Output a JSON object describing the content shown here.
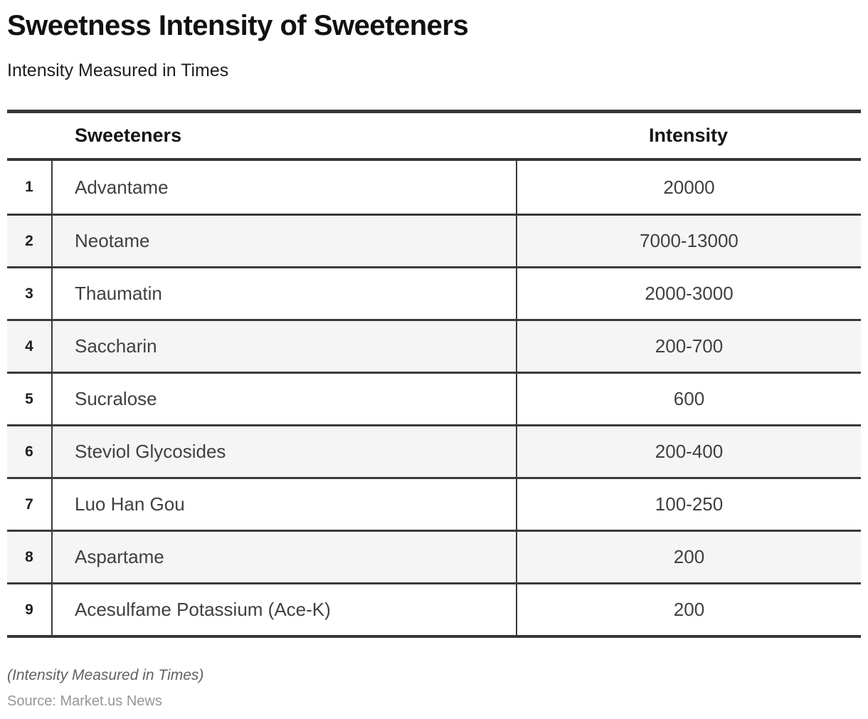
{
  "header": {
    "title": "Sweetness Intensity of Sweeteners",
    "subtitle": "Intensity Measured in Times"
  },
  "table": {
    "columns": {
      "sweeteners": "Sweeteners",
      "intensity": "Intensity"
    },
    "rows": [
      {
        "rank": "1",
        "name": "Advantame",
        "intensity": "20000"
      },
      {
        "rank": "2",
        "name": "Neotame",
        "intensity": "7000-13000"
      },
      {
        "rank": "3",
        "name": "Thaumatin",
        "intensity": "2000-3000"
      },
      {
        "rank": "4",
        "name": "Saccharin",
        "intensity": "200-700"
      },
      {
        "rank": "5",
        "name": "Sucralose",
        "intensity": "600"
      },
      {
        "rank": "6",
        "name": "Steviol Glycosides",
        "intensity": "200-400"
      },
      {
        "rank": "7",
        "name": "Luo Han Gou",
        "intensity": "100-250"
      },
      {
        "rank": "8",
        "name": "Aspartame",
        "intensity": "200"
      },
      {
        "rank": "9",
        "name": "Acesulfame Potassium (Ace-K)",
        "intensity": "200"
      }
    ]
  },
  "footer": {
    "note": "(Intensity Measured in Times)",
    "source": "Source: Market.us News"
  },
  "colors": {
    "border_heavy": "#363636",
    "border_light": "#3a3a3a",
    "row_alt_background": "#f5f5f5",
    "title_text": "#111111",
    "body_text": "#404040",
    "note_text": "#616161",
    "source_text": "#969696"
  },
  "chart_data": {
    "type": "table",
    "title": "Sweetness Intensity of Sweeteners",
    "subtitle": "Intensity Measured in Times",
    "columns": [
      "Sweeteners",
      "Intensity"
    ],
    "categories": [
      "Advantame",
      "Neotame",
      "Thaumatin",
      "Saccharin",
      "Sucralose",
      "Steviol Glycosides",
      "Luo Han Gou",
      "Aspartame",
      "Acesulfame Potassium (Ace-K)"
    ],
    "values": [
      "20000",
      "7000-13000",
      "2000-3000",
      "200-700",
      "600",
      "200-400",
      "100-250",
      "200",
      "200"
    ],
    "note": "(Intensity Measured in Times)",
    "source": "Source: Market.us News"
  }
}
